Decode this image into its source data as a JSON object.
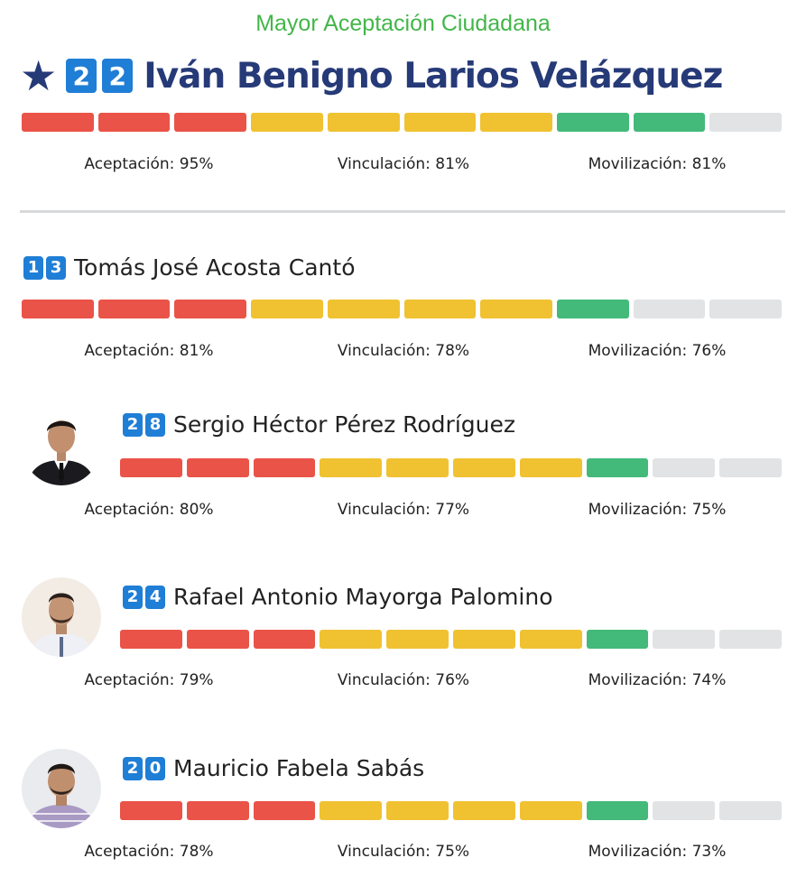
{
  "subtitle": "Mayor Aceptación Ciudadana",
  "colors": {
    "red": "#ea5348",
    "yellow": "#f0c232",
    "green": "#43b97a",
    "empty": "#e1e3e4",
    "badge": "#1f7ed6",
    "navy": "#263a78",
    "subtitle": "#43b649"
  },
  "top": {
    "digits": [
      "2",
      "2"
    ],
    "name": "Iván Benigno Larios Velázquez",
    "aceptacion": "Aceptación: 95%",
    "vinculacion": "Vinculación: 81%",
    "movilizacion": "Movilización: 81%",
    "bar": {
      "red": 3,
      "yellow": 4,
      "green": 2,
      "empty": 1
    }
  },
  "candidates": [
    {
      "digits": [
        "1",
        "3"
      ],
      "name": "Tomás José Acosta Cantó",
      "aceptacion": "Aceptación: 81%",
      "vinculacion": "Vinculación: 78%",
      "movilizacion": "Movilización: 76%",
      "bar": {
        "red": 3,
        "yellow": 4,
        "green": 1,
        "empty": 2
      }
    },
    {
      "digits": [
        "2",
        "8"
      ],
      "name": "Sergio Héctor Pérez Rodríguez",
      "aceptacion": "Aceptación: 80%",
      "vinculacion": "Vinculación: 77%",
      "movilizacion": "Movilización: 75%",
      "bar": {
        "red": 3,
        "yellow": 4,
        "green": 1,
        "empty": 2
      }
    },
    {
      "digits": [
        "2",
        "4"
      ],
      "name": "Rafael Antonio Mayorga Palomino",
      "aceptacion": "Aceptación: 79%",
      "vinculacion": "Vinculación: 76%",
      "movilizacion": "Movilización: 74%",
      "bar": {
        "red": 3,
        "yellow": 4,
        "green": 1,
        "empty": 2
      }
    },
    {
      "digits": [
        "2",
        "0"
      ],
      "name": "Mauricio Fabela Sabás",
      "aceptacion": "Aceptación: 78%",
      "vinculacion": "Vinculación: 75%",
      "movilizacion": "Movilización: 73%",
      "bar": {
        "red": 3,
        "yellow": 4,
        "green": 1,
        "empty": 2
      }
    }
  ]
}
